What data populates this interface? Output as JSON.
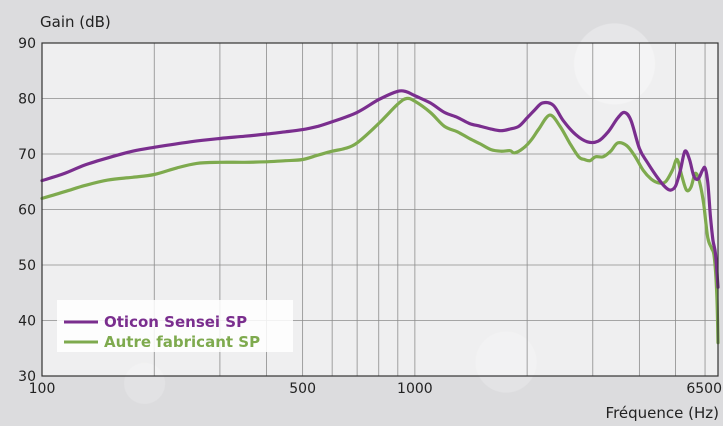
{
  "chart_data": {
    "type": "line",
    "ylabel": "Gain (dB)",
    "xlabel": "Fréquence (Hz)",
    "x_scale": "log",
    "xlim": [
      100,
      6500
    ],
    "ylim": [
      30,
      90
    ],
    "x_tick_labels": [
      "100",
      "500",
      "1000",
      "6500"
    ],
    "x_tick_values": [
      100,
      500,
      1000,
      6500
    ],
    "y_ticks": [
      30,
      40,
      50,
      60,
      70,
      80,
      90
    ],
    "grid": true,
    "legend_position": "bottom-left",
    "series": [
      {
        "name": "Oticon Sensei SP",
        "color": "#7a2e8e",
        "points": [
          [
            100,
            65.2
          ],
          [
            115,
            66.5
          ],
          [
            130,
            68
          ],
          [
            150,
            69.3
          ],
          [
            175,
            70.5
          ],
          [
            200,
            71.2
          ],
          [
            250,
            72.2
          ],
          [
            300,
            72.8
          ],
          [
            350,
            73.2
          ],
          [
            400,
            73.6
          ],
          [
            450,
            74.0
          ],
          [
            500,
            74.4
          ],
          [
            550,
            75.0
          ],
          [
            600,
            75.8
          ],
          [
            700,
            77.5
          ],
          [
            800,
            79.8
          ],
          [
            900,
            81.3
          ],
          [
            950,
            81.2
          ],
          [
            1000,
            80.5
          ],
          [
            1100,
            79.2
          ],
          [
            1200,
            77.5
          ],
          [
            1300,
            76.6
          ],
          [
            1400,
            75.5
          ],
          [
            1500,
            75.0
          ],
          [
            1600,
            74.5
          ],
          [
            1700,
            74.2
          ],
          [
            1800,
            74.5
          ],
          [
            1900,
            75.0
          ],
          [
            2000,
            76.5
          ],
          [
            2100,
            78.0
          ],
          [
            2200,
            79.2
          ],
          [
            2350,
            78.8
          ],
          [
            2500,
            76.0
          ],
          [
            2700,
            73.5
          ],
          [
            2900,
            72.2
          ],
          [
            3100,
            72.3
          ],
          [
            3300,
            74.0
          ],
          [
            3500,
            76.5
          ],
          [
            3650,
            77.5
          ],
          [
            3800,
            76.0
          ],
          [
            4000,
            71.0
          ],
          [
            4200,
            68.5
          ],
          [
            4500,
            65.5
          ],
          [
            4700,
            64.0
          ],
          [
            4850,
            63.5
          ],
          [
            5000,
            64.2
          ],
          [
            5150,
            67.0
          ],
          [
            5300,
            70.5
          ],
          [
            5450,
            69.0
          ],
          [
            5600,
            66.0
          ],
          [
            5750,
            65.5
          ],
          [
            5900,
            67.0
          ],
          [
            6000,
            67.5
          ],
          [
            6100,
            65.0
          ],
          [
            6200,
            59.0
          ],
          [
            6300,
            54.5
          ],
          [
            6400,
            52.0
          ],
          [
            6500,
            46.0
          ]
        ]
      },
      {
        "name": "Autre fabricant SP",
        "color": "#7eaa4e",
        "points": [
          [
            100,
            62.0
          ],
          [
            115,
            63.2
          ],
          [
            130,
            64.3
          ],
          [
            150,
            65.3
          ],
          [
            175,
            65.8
          ],
          [
            200,
            66.3
          ],
          [
            230,
            67.5
          ],
          [
            260,
            68.3
          ],
          [
            300,
            68.5
          ],
          [
            350,
            68.5
          ],
          [
            400,
            68.6
          ],
          [
            450,
            68.8
          ],
          [
            500,
            69.0
          ],
          [
            550,
            69.8
          ],
          [
            600,
            70.5
          ],
          [
            650,
            71.0
          ],
          [
            700,
            72.0
          ],
          [
            800,
            75.5
          ],
          [
            900,
            79.0
          ],
          [
            950,
            80.0
          ],
          [
            1000,
            79.5
          ],
          [
            1100,
            77.5
          ],
          [
            1200,
            75.0
          ],
          [
            1300,
            74.0
          ],
          [
            1400,
            72.8
          ],
          [
            1500,
            71.8
          ],
          [
            1600,
            70.8
          ],
          [
            1700,
            70.5
          ],
          [
            1800,
            70.6
          ],
          [
            1850,
            70.2
          ],
          [
            1950,
            71.0
          ],
          [
            2050,
            72.5
          ],
          [
            2150,
            74.5
          ],
          [
            2300,
            77.0
          ],
          [
            2450,
            75.0
          ],
          [
            2600,
            72.0
          ],
          [
            2750,
            69.5
          ],
          [
            2850,
            69.0
          ],
          [
            2950,
            68.8
          ],
          [
            3050,
            69.5
          ],
          [
            3200,
            69.5
          ],
          [
            3350,
            70.5
          ],
          [
            3500,
            72.0
          ],
          [
            3700,
            71.5
          ],
          [
            3900,
            69.5
          ],
          [
            4100,
            67.0
          ],
          [
            4300,
            65.5
          ],
          [
            4500,
            64.8
          ],
          [
            4700,
            65.0
          ],
          [
            4900,
            67.0
          ],
          [
            5050,
            69.0
          ],
          [
            5200,
            66.0
          ],
          [
            5350,
            63.5
          ],
          [
            5500,
            64.0
          ],
          [
            5650,
            66.5
          ],
          [
            5800,
            65.0
          ],
          [
            5950,
            61.0
          ],
          [
            6100,
            55.0
          ],
          [
            6250,
            53.0
          ],
          [
            6350,
            51.5
          ],
          [
            6450,
            45.0
          ],
          [
            6500,
            36.0
          ]
        ]
      }
    ]
  }
}
